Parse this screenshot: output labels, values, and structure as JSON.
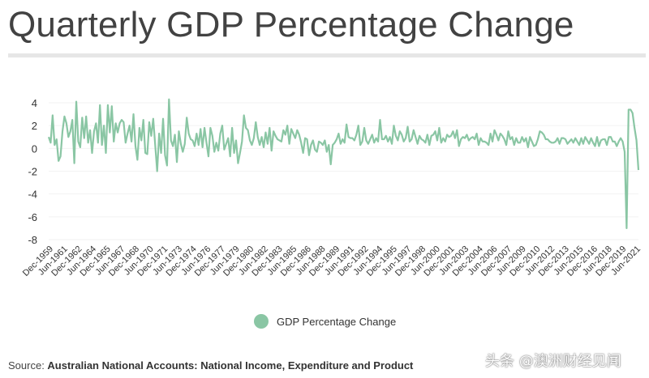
{
  "colors": {
    "line": "#8ac6a4",
    "axis_text": "#333333",
    "grid": "#f2f2f2"
  },
  "legend": {
    "label": "GDP Percentage Change"
  },
  "source": {
    "prefix": "Source: ",
    "text": "Australian National Accounts: National Income, Expenditure and Product"
  },
  "watermark": "头条 @澳洲财经见闻",
  "chart_data": {
    "type": "line",
    "title": "Quarterly GDP Percentage Change",
    "xlabel": "",
    "ylabel": "",
    "ylim": [
      -8,
      4
    ],
    "yticks": [
      4,
      2,
      0,
      -2,
      -4,
      -6,
      -8
    ],
    "x_tick_labels": [
      "Dec-1959",
      "Jun-1961",
      "Dec-1962",
      "Jun-1964",
      "Dec-1965",
      "Jun-1967",
      "Dec-1968",
      "Jun-1970",
      "Dec-1971",
      "Jun-1973",
      "Dec-1974",
      "Jun-1976",
      "Dec-1977",
      "Jun-1979",
      "Dec-1980",
      "Jun-1982",
      "Dec-1983",
      "Jun-1985",
      "Dec-1986",
      "Jun-1988",
      "Dec-1989",
      "Jun-1991",
      "Dec-1992",
      "Jun-1994",
      "Dec-1995",
      "Jun-1997",
      "Dec-1998",
      "Jun-2000",
      "Dec-2001",
      "Jun-2003",
      "Dec-2004",
      "Jun-2006",
      "Dec-2007",
      "Jun-2009",
      "Dec-2010",
      "Jun-2012",
      "Dec-2013",
      "Jun-2015",
      "Dec-2016",
      "Jun-2018",
      "Dec-2019",
      "Jun-2021"
    ],
    "series": [
      {
        "name": "GDP Percentage Change",
        "values": [
          1.0,
          0.5,
          2.9,
          0.3,
          0.8,
          -1.1,
          -0.7,
          1.5,
          2.8,
          2.2,
          1.0,
          1.5,
          2.5,
          -1.3,
          4.1,
          0.6,
          0.1,
          2.7,
          0.9,
          2.8,
          0.5,
          1.6,
          -0.4,
          1.5,
          2.2,
          0.5,
          3.8,
          0.3,
          2.0,
          -0.4,
          3.8,
          1.4,
          3.7,
          0.6,
          2.2,
          1.4,
          2.2,
          2.5,
          2.3,
          0.5,
          1.3,
          2.0,
          0.6,
          3.0,
          0.2,
          -1.0,
          1.8,
          0.7,
          2.5,
          -0.4,
          -0.5,
          2.3,
          1.1,
          2.6,
          0.3,
          -2.0,
          1.3,
          -0.4,
          2.6,
          -0.6,
          -1.5,
          4.3,
          0.7,
          0.2,
          1.2,
          -1.2,
          1.5,
          0.4,
          -0.3,
          0.4,
          2.7,
          1.3,
          0.8,
          0.7,
          0.2,
          1.3,
          0.3,
          1.7,
          0.1,
          1.8,
          0.5,
          -0.7,
          1.8,
          1.1,
          -0.3,
          0.5,
          -0.2,
          1.3,
          2.0,
          -0.1,
          0.4,
          0.9,
          -0.7,
          1.8,
          -0.4,
          0.7,
          -1.3,
          -0.4,
          0.6,
          2.9,
          1.8,
          1.6,
          0.7,
          0.3,
          0.9,
          2.3,
          1.0,
          0.3,
          1.0,
          0.1,
          1.4,
          0.4,
          1.8,
          -0.2,
          1.5,
          1.1,
          0.8,
          0.7,
          0.6,
          1.6,
          1.2,
          2.0,
          0.4,
          1.7,
          1.3,
          0.9,
          1.6,
          1.2,
          0.5,
          -0.4,
          0.9,
          0.8,
          -0.6,
          0.3,
          0.7,
          -0.1,
          -0.3,
          0.6,
          0.5,
          0.3,
          0.7,
          -0.3,
          0.3,
          -1.4,
          0.3,
          0.5,
          0.8,
          1.3,
          0.4,
          0.8,
          0.5,
          2.1,
          1.0,
          0.9,
          0.9,
          0.7,
          1.2,
          2.0,
          0.3,
          0.6,
          1.8,
          0.7,
          0.4,
          0.8,
          1.2,
          0.5,
          0.9,
          0.6,
          2.5,
          0.8,
          0.8,
          1.1,
          0.6,
          1.0,
          0.4,
          2.0,
          1.1,
          0.7,
          1.5,
          1.2,
          0.6,
          0.9,
          1.9,
          0.6,
          0.8,
          1.6,
          1.0,
          0.4,
          1.1,
          0.8,
          0.7,
          0.5,
          1.2,
          0.3,
          1.1,
          1.2,
          1.5,
          0.7,
          1.8,
          0.5,
          0.9,
          0.6,
          1.2,
          1.0,
          1.1,
          1.5,
          0.9,
          1.6,
          0.2,
          0.8,
          1.0,
          0.9,
          1.2,
          0.7,
          0.9,
          1.0,
          0.8,
          1.3,
          0.3,
          0.9,
          0.6,
          0.6,
          0.5,
          0.3,
          1.3,
          0.6,
          1.6,
          1.2,
          0.7,
          1.3,
          1.1,
          0.8,
          0.3,
          1.5,
          0.8,
          1.0,
          0.3,
          0.9,
          0.5,
          0.5,
          1.0,
          0.6,
          0.9,
          0.1,
          1.0,
          0.6,
          0.2,
          0.3,
          0.8,
          1.5,
          1.4,
          1.2,
          0.8,
          0.8,
          0.6,
          0.5,
          0.5,
          0.6,
          0.9,
          0.4,
          0.9,
          0.9,
          0.8,
          0.4,
          0.6,
          0.8,
          0.5,
          0.9,
          0.6,
          0.3,
          0.9,
          0.4,
          1.0,
          0.7,
          0.4,
          0.9,
          0.5,
          0.2,
          1.0,
          0.2,
          0.7,
          0.8,
          0.8,
          0.3,
          1.0,
          1.0,
          0.6,
          0.6,
          0.2,
          0.6,
          0.9,
          0.6,
          -0.3,
          -7.0,
          3.4,
          3.4,
          3.1,
          1.8,
          0.7,
          -1.9
        ]
      }
    ]
  }
}
